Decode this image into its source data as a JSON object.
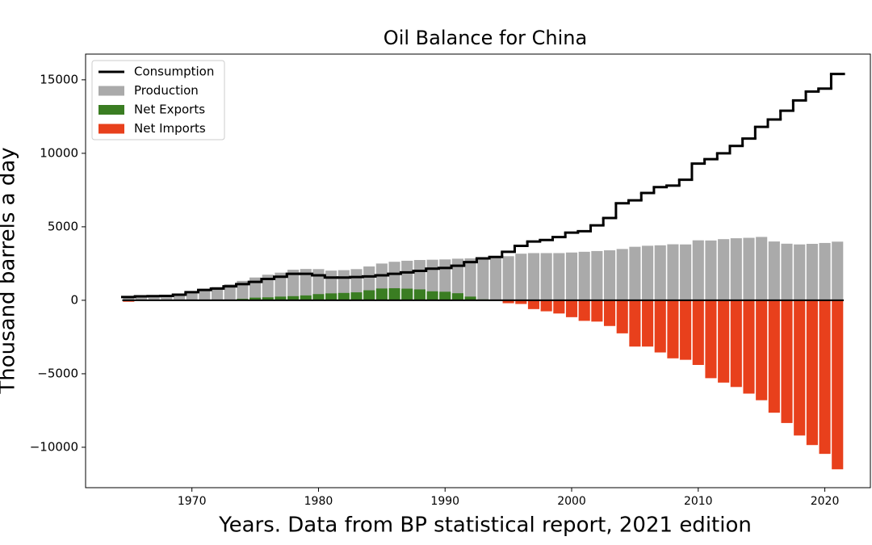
{
  "chart_data": {
    "type": "bar",
    "title": "Oil Balance for China",
    "xlabel": "Years. Data from BP statistical report, 2021 edition",
    "ylabel": "Thousand barrels a day",
    "x": [
      1965,
      1966,
      1967,
      1968,
      1969,
      1970,
      1971,
      1972,
      1973,
      1974,
      1975,
      1976,
      1977,
      1978,
      1979,
      1980,
      1981,
      1982,
      1983,
      1984,
      1985,
      1986,
      1987,
      1988,
      1989,
      1990,
      1991,
      1992,
      1993,
      1994,
      1995,
      1996,
      1997,
      1998,
      1999,
      2000,
      2001,
      2002,
      2003,
      2004,
      2005,
      2006,
      2007,
      2008,
      2009,
      2010,
      2011,
      2012,
      2013,
      2014,
      2015,
      2016,
      2017,
      2018,
      2019,
      2020,
      2021
    ],
    "series": [
      {
        "name": "Consumption",
        "type": "line",
        "color": "#000000",
        "values": [
          220,
          270,
          280,
          300,
          380,
          550,
          700,
          800,
          950,
          1100,
          1250,
          1450,
          1600,
          1800,
          1800,
          1700,
          1550,
          1550,
          1580,
          1620,
          1700,
          1800,
          1900,
          2000,
          2150,
          2200,
          2350,
          2600,
          2850,
          2950,
          3300,
          3700,
          4000,
          4100,
          4300,
          4600,
          4700,
          5100,
          5600,
          6600,
          6800,
          7300,
          7700,
          7800,
          8200,
          9300,
          9600,
          10000,
          10500,
          11000,
          11800,
          12300,
          12900,
          13600,
          14200,
          14400,
          15400
        ]
      },
      {
        "name": "Production",
        "type": "bar",
        "color": "#aaaaaa",
        "values": [
          230,
          290,
          280,
          320,
          440,
          620,
          790,
          900,
          1090,
          1320,
          1550,
          1740,
          1880,
          2080,
          2130,
          2120,
          2020,
          2050,
          2120,
          2300,
          2500,
          2620,
          2690,
          2740,
          2760,
          2780,
          2830,
          2850,
          2910,
          2940,
          3000,
          3170,
          3210,
          3210,
          3210,
          3250,
          3300,
          3350,
          3400,
          3490,
          3640,
          3710,
          3740,
          3810,
          3800,
          4080,
          4070,
          4160,
          4220,
          4250,
          4310,
          4000,
          3850,
          3800,
          3840,
          3900,
          3990
        ]
      },
      {
        "name": "Net Exports",
        "type": "bar",
        "color": "#3a7d22",
        "values": [
          0,
          0,
          0,
          0,
          0,
          0,
          0,
          0,
          0,
          100,
          180,
          200,
          250,
          280,
          330,
          420,
          470,
          500,
          540,
          680,
          800,
          820,
          790,
          740,
          610,
          580,
          480,
          250,
          60,
          0,
          0,
          0,
          0,
          0,
          0,
          0,
          0,
          0,
          0,
          0,
          0,
          0,
          0,
          0,
          0,
          0,
          0,
          0,
          0,
          0,
          0,
          0,
          0,
          0,
          0,
          0,
          0
        ]
      },
      {
        "name": "Net Imports",
        "type": "bar",
        "color": "#e8401c",
        "values": [
          -100,
          0,
          0,
          0,
          0,
          0,
          0,
          0,
          0,
          0,
          0,
          0,
          0,
          0,
          0,
          0,
          0,
          0,
          0,
          0,
          0,
          0,
          0,
          0,
          0,
          0,
          0,
          0,
          0,
          0,
          -200,
          -250,
          -600,
          -750,
          -900,
          -1150,
          -1400,
          -1450,
          -1750,
          -2250,
          -3150,
          -3150,
          -3550,
          -3950,
          -4050,
          -4400,
          -5300,
          -5600,
          -5900,
          -6350,
          -6800,
          -7650,
          -8350,
          -9200,
          -9850,
          -10450,
          -11500
        ]
      }
    ],
    "xlim": [
      1961.6,
      2023.6
    ],
    "ylim": [
      -12750,
      16750
    ],
    "xticks": [
      1970,
      1980,
      1990,
      2000,
      2010,
      2020
    ],
    "yticks": [
      {
        "value": -10000,
        "label": "−10000"
      },
      {
        "value": -5000,
        "label": "−5000"
      },
      0,
      5000,
      10000,
      15000
    ],
    "legend": "upper left"
  }
}
